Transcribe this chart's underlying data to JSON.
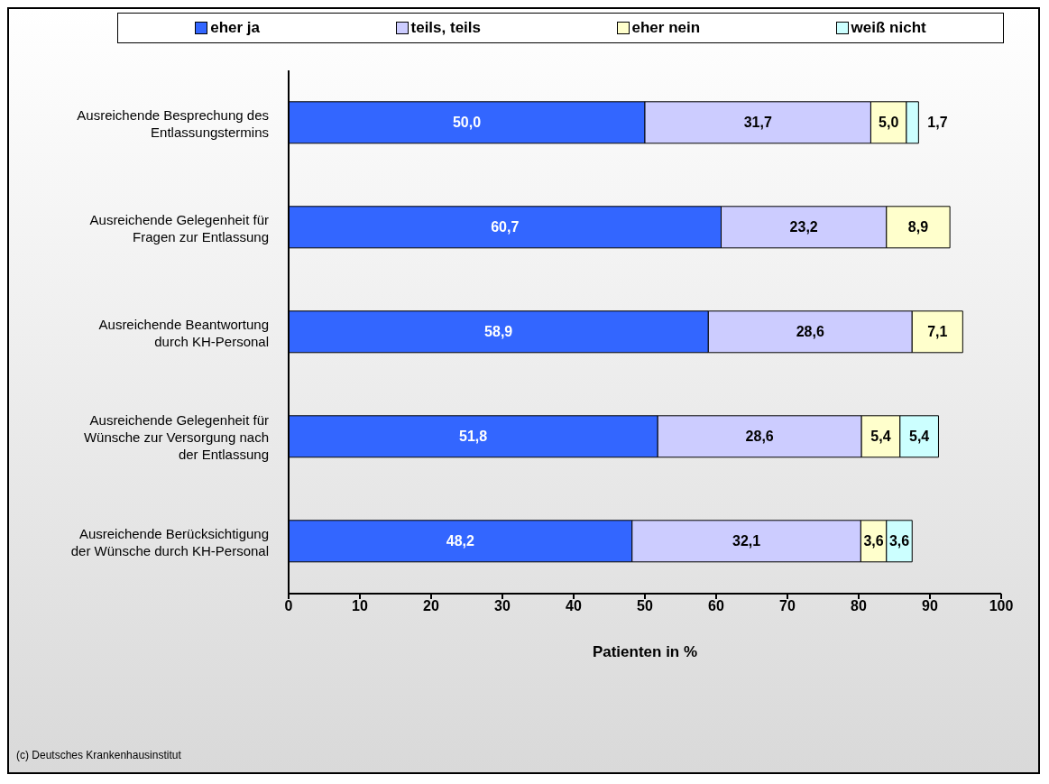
{
  "chart_data": {
    "type": "bar",
    "orientation": "horizontal",
    "stacked": true,
    "categories": [
      "Ausreichende Besprechung des Entlassungstermins",
      "Ausreichende Gelegenheit für Fragen zur Entlassung",
      "Ausreichende Beantwortung durch KH-Personal",
      "Ausreichende Gelegenheit für Wünsche zur Versorgung nach der Entlassung",
      "Ausreichende Berücksichtigung der Wünsche durch KH-Personal"
    ],
    "series": [
      {
        "name": "eher ja",
        "color": "#3366ff",
        "values": [
          50.0,
          60.7,
          58.9,
          51.8,
          48.2
        ],
        "value_labels": [
          "50,0",
          "60,7",
          "58,9",
          "51,8",
          "48,2"
        ]
      },
      {
        "name": "teils, teils",
        "color": "#ccccff",
        "values": [
          31.7,
          23.2,
          28.6,
          28.6,
          32.1
        ],
        "value_labels": [
          "31,7",
          "23,2",
          "28,6",
          "28,6",
          "32,1"
        ]
      },
      {
        "name": "eher nein",
        "color": "#ffffcc",
        "values": [
          5.0,
          8.9,
          7.1,
          5.4,
          3.6
        ],
        "value_labels": [
          "5,0",
          "8,9",
          "7,1",
          "5,4",
          "3,6"
        ]
      },
      {
        "name": "weiß nicht",
        "color": "#ccffff",
        "values": [
          1.7,
          null,
          null,
          5.4,
          3.6
        ],
        "value_labels": [
          "1,7",
          null,
          null,
          "5,4",
          "3,6"
        ]
      }
    ],
    "xlim": [
      0,
      100
    ],
    "xticks": [
      0,
      10,
      20,
      30,
      40,
      50,
      60,
      70,
      80,
      90,
      100
    ],
    "xlabel": "Patienten in %",
    "legend": "top",
    "annotations": [
      "(c) Deutsches Krankenhausinstitut"
    ]
  }
}
